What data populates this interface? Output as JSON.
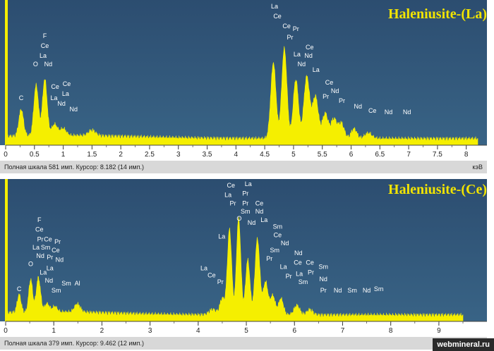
{
  "chart_data": [
    {
      "type": "area",
      "title": "Haleniusite-(La)",
      "xlabel": "кэВ",
      "xlim": [
        0,
        8.2
      ],
      "ylim": [
        0,
        100
      ],
      "grid": false,
      "x_ticks": [
        "0",
        "0.5",
        "1",
        "1.5",
        "2",
        "2.5",
        "3",
        "3.5",
        "4",
        "4.5",
        "5",
        "5.5",
        "6",
        "6.5",
        "7",
        "7.5",
        "8"
      ],
      "status_text": "Полная шкала 581 имп. Курсор: 8.182 (14 имп.)",
      "unit_label": "кэВ",
      "series": [
        {
          "name": "spectrum",
          "color": "#f5ef00",
          "peaks": [
            {
              "x": 0.27,
              "y": 19,
              "w": 0.04
            },
            {
              "x": 0.53,
              "y": 36,
              "w": 0.04
            },
            {
              "x": 0.68,
              "y": 40,
              "w": 0.04
            },
            {
              "x": 0.85,
              "y": 8,
              "w": 0.05
            },
            {
              "x": 1.0,
              "y": 5,
              "w": 0.05
            },
            {
              "x": 1.5,
              "y": 4,
              "w": 0.06
            },
            {
              "x": 4.65,
              "y": 54,
              "w": 0.045
            },
            {
              "x": 4.84,
              "y": 64,
              "w": 0.045
            },
            {
              "x": 5.04,
              "y": 42,
              "w": 0.045
            },
            {
              "x": 5.23,
              "y": 44,
              "w": 0.05
            },
            {
              "x": 5.38,
              "y": 30,
              "w": 0.05
            },
            {
              "x": 5.55,
              "y": 18,
              "w": 0.05
            },
            {
              "x": 5.7,
              "y": 14,
              "w": 0.05
            },
            {
              "x": 5.83,
              "y": 11,
              "w": 0.05
            },
            {
              "x": 6.05,
              "y": 7,
              "w": 0.05
            },
            {
              "x": 6.3,
              "y": 4,
              "w": 0.06
            }
          ]
        }
      ],
      "annotations": [
        {
          "label": "C",
          "x": 0.27,
          "y": 32
        },
        {
          "label": "O",
          "x": 0.52,
          "y": 56
        },
        {
          "label": "F",
          "x": 0.68,
          "y": 76
        },
        {
          "label": "Ce",
          "x": 0.68,
          "y": 69
        },
        {
          "label": "La",
          "x": 0.65,
          "y": 62
        },
        {
          "label": "Nd",
          "x": 0.74,
          "y": 56
        },
        {
          "label": "La",
          "x": 0.84,
          "y": 32
        },
        {
          "label": "Ce",
          "x": 0.86,
          "y": 40
        },
        {
          "label": "Ce",
          "x": 1.06,
          "y": 42
        },
        {
          "label": "La",
          "x": 1.04,
          "y": 35
        },
        {
          "label": "Nd",
          "x": 0.97,
          "y": 28
        },
        {
          "label": "Nd",
          "x": 1.18,
          "y": 24
        },
        {
          "label": "La",
          "x": 4.67,
          "y": 97
        },
        {
          "label": "Ce",
          "x": 4.72,
          "y": 90
        },
        {
          "label": "Ce",
          "x": 4.88,
          "y": 83
        },
        {
          "label": "Pr",
          "x": 5.04,
          "y": 81
        },
        {
          "label": "Pr",
          "x": 4.94,
          "y": 75
        },
        {
          "label": "Ce",
          "x": 5.28,
          "y": 68
        },
        {
          "label": "La",
          "x": 5.06,
          "y": 63
        },
        {
          "label": "Nd",
          "x": 5.26,
          "y": 62
        },
        {
          "label": "Nd",
          "x": 5.14,
          "y": 56
        },
        {
          "label": "La",
          "x": 5.39,
          "y": 52
        },
        {
          "label": "Ce",
          "x": 5.62,
          "y": 43
        },
        {
          "label": "Nd",
          "x": 5.72,
          "y": 37
        },
        {
          "label": "Pr",
          "x": 5.56,
          "y": 33
        },
        {
          "label": "Pr",
          "x": 5.84,
          "y": 30
        },
        {
          "label": "Nd",
          "x": 6.12,
          "y": 26
        },
        {
          "label": "Ce",
          "x": 6.37,
          "y": 23
        },
        {
          "label": "Nd",
          "x": 6.65,
          "y": 22
        },
        {
          "label": "Nd",
          "x": 6.97,
          "y": 22
        }
      ]
    },
    {
      "type": "area",
      "title": "Haleniusite-(Ce)",
      "xlabel": "",
      "xlim": [
        0,
        9.5
      ],
      "ylim": [
        0,
        100
      ],
      "grid": false,
      "x_ticks": [
        "0",
        "1",
        "2",
        "3",
        "4",
        "5",
        "6",
        "7",
        "8",
        "9"
      ],
      "status_text": "Полная шкала 379 имп. Курсор: 9.462 (12 имп.)",
      "unit_label": "",
      "series": [
        {
          "name": "spectrum",
          "color": "#f5ef00",
          "peaks": [
            {
              "x": 0.28,
              "y": 13,
              "w": 0.04
            },
            {
              "x": 0.52,
              "y": 24,
              "w": 0.04
            },
            {
              "x": 0.68,
              "y": 25,
              "w": 0.045
            },
            {
              "x": 0.86,
              "y": 6,
              "w": 0.05
            },
            {
              "x": 1.02,
              "y": 4,
              "w": 0.05
            },
            {
              "x": 1.49,
              "y": 6,
              "w": 0.06
            },
            {
              "x": 4.3,
              "y": 4,
              "w": 0.07
            },
            {
              "x": 4.5,
              "y": 12,
              "w": 0.05
            },
            {
              "x": 4.65,
              "y": 62,
              "w": 0.045
            },
            {
              "x": 4.84,
              "y": 70,
              "w": 0.045
            },
            {
              "x": 5.03,
              "y": 40,
              "w": 0.045
            },
            {
              "x": 5.23,
              "y": 55,
              "w": 0.05
            },
            {
              "x": 5.4,
              "y": 24,
              "w": 0.05
            },
            {
              "x": 5.55,
              "y": 14,
              "w": 0.05
            },
            {
              "x": 5.72,
              "y": 12,
              "w": 0.05
            },
            {
              "x": 6.05,
              "y": 7,
              "w": 0.06
            },
            {
              "x": 6.32,
              "y": 4,
              "w": 0.06
            }
          ]
        }
      ],
      "annotations": [
        {
          "label": "C",
          "x": 0.28,
          "y": 22
        },
        {
          "label": "O",
          "x": 0.52,
          "y": 40
        },
        {
          "label": "F",
          "x": 0.7,
          "y": 72
        },
        {
          "label": "Ce",
          "x": 0.7,
          "y": 65
        },
        {
          "label": "Pr",
          "x": 0.72,
          "y": 58
        },
        {
          "label": "Ce",
          "x": 0.88,
          "y": 58
        },
        {
          "label": "Pr",
          "x": 1.08,
          "y": 56
        },
        {
          "label": "La",
          "x": 0.63,
          "y": 52
        },
        {
          "label": "Sm",
          "x": 0.83,
          "y": 52
        },
        {
          "label": "Ce",
          "x": 1.04,
          "y": 50
        },
        {
          "label": "Nd",
          "x": 0.72,
          "y": 46
        },
        {
          "label": "Pr",
          "x": 0.92,
          "y": 45
        },
        {
          "label": "Nd",
          "x": 1.12,
          "y": 43
        },
        {
          "label": "La",
          "x": 0.92,
          "y": 37
        },
        {
          "label": "La",
          "x": 0.78,
          "y": 34
        },
        {
          "label": "Nd",
          "x": 0.9,
          "y": 28
        },
        {
          "label": "Sm",
          "x": 1.26,
          "y": 26
        },
        {
          "label": "Al",
          "x": 1.49,
          "y": 26
        },
        {
          "label": "Sm",
          "x": 1.05,
          "y": 21
        },
        {
          "label": "La",
          "x": 4.12,
          "y": 37
        },
        {
          "label": "Ce",
          "x": 4.28,
          "y": 32
        },
        {
          "label": "Pr",
          "x": 4.46,
          "y": 27
        },
        {
          "label": "La",
          "x": 4.49,
          "y": 60
        },
        {
          "label": "Ce",
          "x": 4.68,
          "y": 97
        },
        {
          "label": "La",
          "x": 5.04,
          "y": 98
        },
        {
          "label": "La",
          "x": 4.62,
          "y": 90
        },
        {
          "label": "Pr",
          "x": 4.98,
          "y": 91
        },
        {
          "label": "Pr",
          "x": 4.72,
          "y": 84
        },
        {
          "label": "Pr",
          "x": 4.98,
          "y": 84
        },
        {
          "label": "Ce",
          "x": 5.27,
          "y": 84
        },
        {
          "label": "Sm",
          "x": 4.98,
          "y": 78
        },
        {
          "label": "Nd",
          "x": 5.27,
          "y": 78
        },
        {
          "label": "O",
          "x": 4.85,
          "y": 73
        },
        {
          "label": "La",
          "x": 5.37,
          "y": 72
        },
        {
          "label": "Nd",
          "x": 5.11,
          "y": 70
        },
        {
          "label": "Sm",
          "x": 5.65,
          "y": 67
        },
        {
          "label": "Ce",
          "x": 5.65,
          "y": 61
        },
        {
          "label": "Nd",
          "x": 5.8,
          "y": 55
        },
        {
          "label": "Sm",
          "x": 5.59,
          "y": 50
        },
        {
          "label": "Pr",
          "x": 5.48,
          "y": 44
        },
        {
          "label": "Nd",
          "x": 6.08,
          "y": 48
        },
        {
          "label": "Ce",
          "x": 6.07,
          "y": 41
        },
        {
          "label": "Ce",
          "x": 6.32,
          "y": 41
        },
        {
          "label": "La",
          "x": 5.77,
          "y": 38
        },
        {
          "label": "Sm",
          "x": 6.6,
          "y": 38
        },
        {
          "label": "Pr",
          "x": 6.34,
          "y": 34
        },
        {
          "label": "La",
          "x": 6.1,
          "y": 33
        },
        {
          "label": "Pr",
          "x": 5.88,
          "y": 31
        },
        {
          "label": "Sm",
          "x": 6.18,
          "y": 27
        },
        {
          "label": "Nd",
          "x": 6.6,
          "y": 29
        },
        {
          "label": "Pr",
          "x": 6.6,
          "y": 21
        },
        {
          "label": "Nd",
          "x": 6.9,
          "y": 21
        },
        {
          "label": "Sm",
          "x": 7.2,
          "y": 21
        },
        {
          "label": "Nd",
          "x": 7.5,
          "y": 21
        },
        {
          "label": "Sm",
          "x": 7.75,
          "y": 22
        }
      ]
    }
  ],
  "watermark": "webmineral.ru"
}
